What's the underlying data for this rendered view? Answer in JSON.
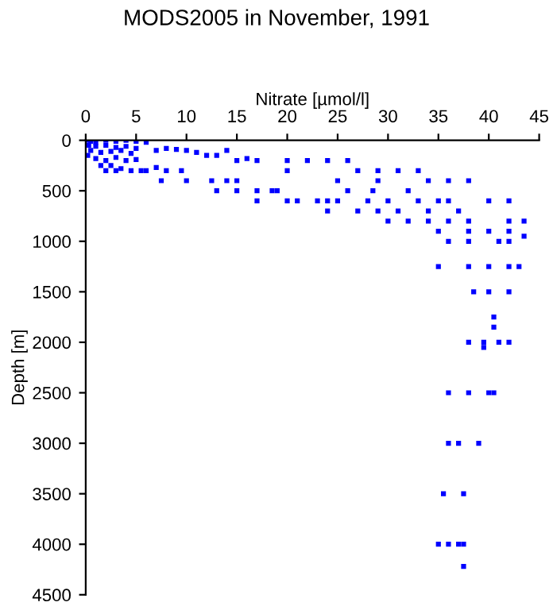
{
  "chart_data": {
    "type": "scatter",
    "title": "MODS2005 in November, 1991",
    "xlabel": "Nitrate [µmol/l]",
    "ylabel": "Depth [m]",
    "xlim": [
      0,
      45
    ],
    "xticks": [
      0,
      5,
      10,
      15,
      20,
      25,
      30,
      35,
      40,
      45
    ],
    "ylim": [
      4500,
      0
    ],
    "yticks": [
      0,
      500,
      1000,
      1500,
      2000,
      2500,
      3000,
      3500,
      4000,
      4500
    ],
    "grid": false,
    "marker": "square",
    "series": [
      {
        "color": "#0000ff",
        "x": [
          0.2,
          0.5,
          1,
          2,
          3,
          4,
          5,
          6,
          0.3,
          1,
          2,
          3,
          4,
          5,
          0.5,
          1.5,
          2.5,
          3.5,
          4.5,
          0.2,
          1,
          2,
          3,
          4,
          5,
          1.5,
          2.5,
          3.5,
          4.5,
          5.5,
          2,
          3,
          6,
          7,
          8,
          9,
          10,
          11,
          12,
          13,
          14,
          7,
          8,
          7.5,
          10,
          9.5,
          12.5,
          14,
          15,
          13,
          15,
          17,
          18.5,
          19,
          17,
          20,
          21,
          23,
          24,
          16,
          17,
          15,
          20,
          22,
          24,
          26,
          27,
          29,
          31,
          33,
          20,
          25,
          29,
          34,
          36,
          38,
          26,
          28.5,
          32,
          25,
          28,
          30,
          33,
          35,
          36,
          40,
          42,
          24,
          27,
          29,
          31,
          34,
          37,
          30,
          32,
          34,
          36,
          38,
          42,
          43.5,
          35,
          38,
          40,
          42,
          43.5,
          36,
          38,
          41,
          42,
          35,
          38,
          40,
          42,
          43,
          38.5,
          40,
          42,
          40.5,
          40.5,
          38,
          39.5,
          41,
          42,
          39.5,
          36,
          38,
          40,
          40.5,
          36,
          37,
          39,
          35.5,
          37.5,
          35,
          36,
          37,
          37.5,
          37.5
        ],
        "values": [
          0,
          10,
          20,
          0,
          10,
          0,
          10,
          20,
          50,
          60,
          50,
          70,
          60,
          80,
          100,
          120,
          110,
          100,
          130,
          150,
          180,
          200,
          170,
          200,
          190,
          250,
          250,
          280,
          300,
          300,
          300,
          300,
          300,
          100,
          80,
          90,
          100,
          120,
          150,
          150,
          100,
          270,
          300,
          400,
          400,
          300,
          400,
          400,
          400,
          500,
          500,
          500,
          500,
          500,
          600,
          600,
          600,
          600,
          600,
          180,
          200,
          200,
          200,
          200,
          200,
          200,
          300,
          300,
          300,
          300,
          300,
          400,
          400,
          400,
          400,
          400,
          500,
          500,
          500,
          600,
          600,
          600,
          600,
          600,
          600,
          600,
          600,
          700,
          700,
          700,
          700,
          700,
          700,
          800,
          800,
          800,
          800,
          800,
          800,
          800,
          900,
          900,
          900,
          900,
          950,
          1000,
          1000,
          1000,
          1000,
          1250,
          1250,
          1250,
          1250,
          1250,
          1500,
          1500,
          1500,
          1750,
          1850,
          2000,
          2000,
          2000,
          2000,
          2050,
          2500,
          2500,
          2500,
          2500,
          3000,
          3000,
          3000,
          3500,
          3500,
          4000,
          4000,
          4000,
          4000,
          4220
        ]
      }
    ]
  }
}
